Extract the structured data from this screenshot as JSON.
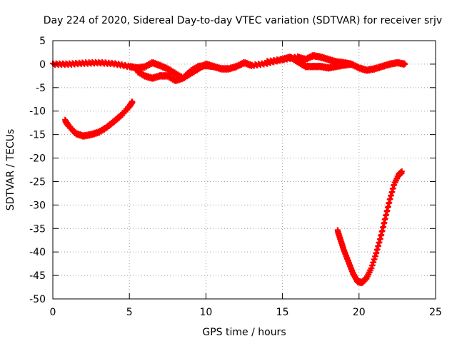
{
  "chart_data": {
    "type": "scatter",
    "title": "Day 224 of 2020, Sidereal Day-to-day VTEC variation (SDTVAR) for receiver srjv",
    "xlabel": "GPS time / hours",
    "ylabel": "SDTVAR / TECUs",
    "xlim": [
      0,
      25
    ],
    "ylim": [
      -50,
      5
    ],
    "xticks": [
      0,
      5,
      10,
      15,
      20,
      25
    ],
    "yticks": [
      5,
      0,
      -5,
      -10,
      -15,
      -20,
      -25,
      -30,
      -35,
      -40,
      -45,
      -50
    ],
    "grid": true,
    "grid_style": "dotted",
    "marker": "plus",
    "series_color": "#ff0000",
    "series": [
      {
        "name": "main-band-upper",
        "x": [
          0,
          1,
          2,
          3,
          4,
          5,
          5.5,
          6,
          6.5,
          7,
          7.5,
          8,
          8.5,
          9,
          9.5,
          10,
          10.5,
          11,
          11.5,
          12,
          12.5,
          13,
          14,
          15,
          16,
          16.5,
          17,
          17.5,
          18,
          18.5,
          19,
          19.5,
          20,
          20.5,
          21,
          21.5,
          22,
          22.5,
          23
        ],
        "y": [
          0,
          0,
          0.2,
          0.3,
          0.1,
          -0.5,
          -0.8,
          -0.6,
          0.3,
          -0.3,
          -1,
          -2,
          -3,
          -2,
          -1,
          0,
          -0.5,
          -1,
          -1,
          -0.5,
          0.3,
          -0.3,
          0.2,
          1,
          1.5,
          1,
          1.8,
          1.5,
          1,
          0.5,
          0.3,
          0,
          -0.8,
          -1.3,
          -1,
          -0.5,
          0,
          0.3,
          0
        ]
      },
      {
        "name": "main-band-lower",
        "x": [
          5.5,
          6,
          6.5,
          7,
          7.5,
          8,
          8.5,
          9,
          9.5,
          10,
          10.5
        ],
        "y": [
          -1.5,
          -2.5,
          -3,
          -2.5,
          -2.5,
          -3.5,
          -3,
          -1.5,
          -0.5,
          -0.3,
          -0.5
        ]
      },
      {
        "name": "main-band-upper-2",
        "x": [
          14,
          15,
          15.5,
          16,
          16.5,
          17,
          17.5,
          18,
          18.5,
          19,
          19.5
        ],
        "y": [
          0.5,
          1,
          1.5,
          0.5,
          -0.5,
          -0.5,
          -0.5,
          -0.8,
          -0.5,
          -0.2,
          0
        ]
      },
      {
        "name": "morning-arc",
        "x": [
          0.8,
          1,
          1.5,
          2,
          2.5,
          3,
          3.5,
          4,
          4.5,
          5,
          5.2
        ],
        "y": [
          -12,
          -13,
          -14.8,
          -15.3,
          -15,
          -14.5,
          -13.5,
          -12.2,
          -10.8,
          -9,
          -8
        ]
      },
      {
        "name": "evening-dip",
        "x": [
          18.6,
          18.8,
          19,
          19.3,
          19.6,
          19.9,
          20.2,
          20.5,
          20.8,
          21.1,
          21.4,
          21.7,
          22,
          22.3,
          22.6,
          22.8
        ],
        "y": [
          -35.5,
          -37.5,
          -39.5,
          -42,
          -44.5,
          -46.3,
          -46.5,
          -45.5,
          -43.5,
          -40.5,
          -37,
          -33,
          -29,
          -25.5,
          -23.5,
          -23
        ]
      }
    ]
  }
}
